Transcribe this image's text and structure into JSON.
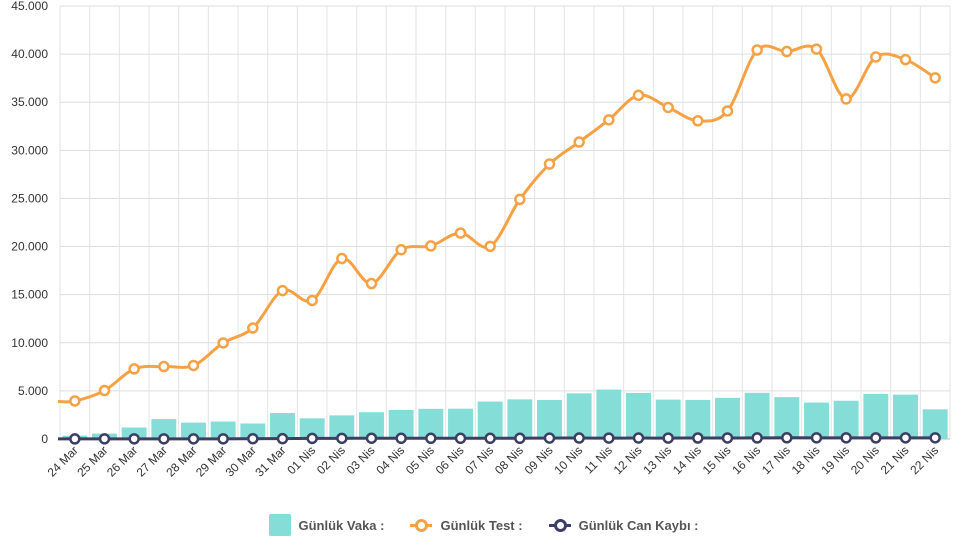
{
  "chart_data": {
    "type": "bar",
    "categories": [
      "24 Mar",
      "25 Mar",
      "26 Mar",
      "27 Mar",
      "28 Mar",
      "29 Mar",
      "30 Mar",
      "31 Mar",
      "01 Nis",
      "02 Nis",
      "03 Nis",
      "04 Nis",
      "05 Nis",
      "06 Nis",
      "07 Nis",
      "08 Nis",
      "09 Nis",
      "10 Nis",
      "11 Nis",
      "12 Nis",
      "13 Nis",
      "14 Nis",
      "15 Nis",
      "16 Nis",
      "17 Nis",
      "18 Nis",
      "19 Nis",
      "20 Nis",
      "21 Nis",
      "22 Nis"
    ],
    "ylim": [
      0,
      45000
    ],
    "yticks": [
      "0",
      "5.000",
      "10.000",
      "15.000",
      "20.000",
      "25.000",
      "30.000",
      "35.000",
      "40.000",
      "45.000"
    ],
    "grid": true,
    "legend_position": "bottom-center",
    "series": [
      {
        "name": "Günlük Vaka :",
        "kind": "bar",
        "color": "#84ddd6",
        "values": [
          343,
          561,
          1196,
          2069,
          1704,
          1815,
          1610,
          2704,
          2148,
          2456,
          2786,
          3013,
          3135,
          3148,
          3892,
          4117,
          4056,
          4747,
          5138,
          4789,
          4093,
          4062,
          4281,
          4801,
          4353,
          3783,
          3977,
          4674,
          4611,
          3083
        ]
      },
      {
        "name": "Günlük Test :",
        "kind": "line",
        "color": "#f7a145",
        "values": [
          3952,
          5035,
          7286,
          7533,
          7641,
          9982,
          11535,
          15422,
          14396,
          18757,
          16160,
          19664,
          20065,
          21400,
          20023,
          24900,
          28578,
          30864,
          33170,
          35720,
          34456,
          33070,
          34090,
          40427,
          40270,
          40520,
          35344,
          39703,
          39429,
          37535
        ]
      },
      {
        "name": "Günlük Can Kaybı :",
        "kind": "line",
        "color": "#3c3f63",
        "values": [
          7,
          15,
          16,
          17,
          16,
          17,
          30,
          37,
          63,
          69,
          79,
          76,
          73,
          75,
          73,
          76,
          96,
          98,
          95,
          98,
          97,
          104,
          107,
          115,
          125,
          121,
          119,
          117,
          119,
          123
        ]
      }
    ]
  }
}
